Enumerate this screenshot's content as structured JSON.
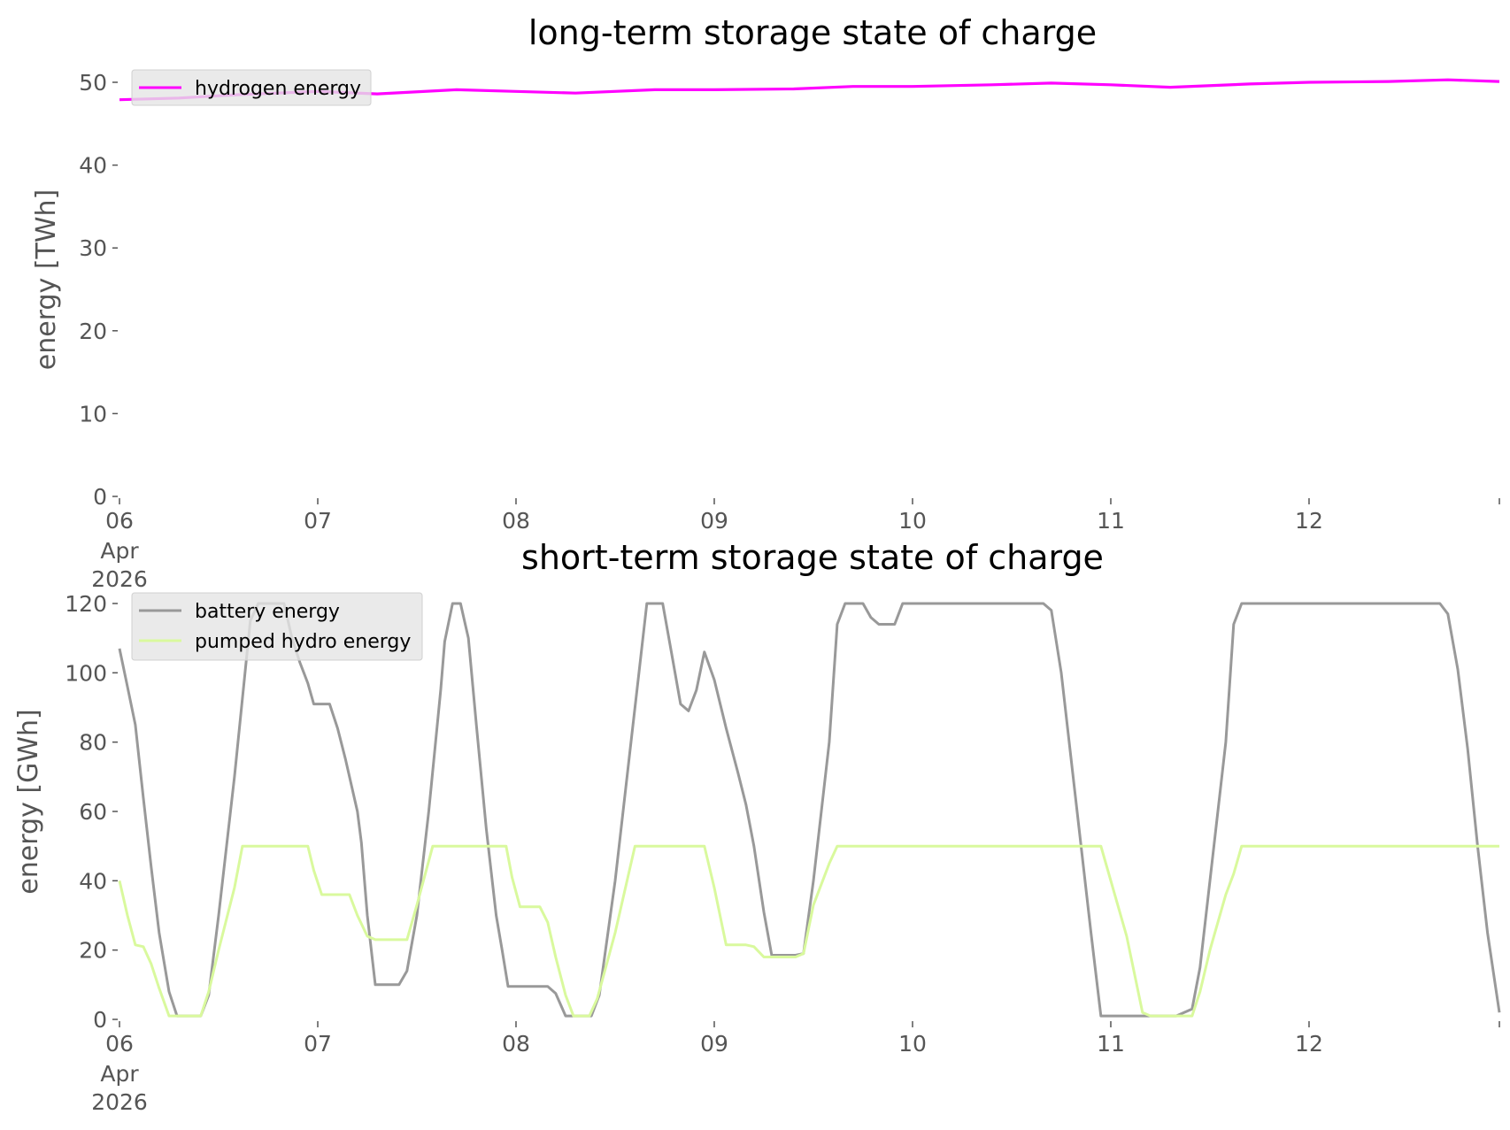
{
  "chart_data": [
    {
      "type": "line",
      "title": "long-term storage state of charge",
      "xlabel": "",
      "ylabel": "energy [TWh]",
      "x_ticks": [
        "06",
        "07",
        "08",
        "09",
        "10",
        "11",
        "12"
      ],
      "x_tick_sub": [
        "Apr",
        "2026"
      ],
      "x_range_days": [
        6,
        12.96
      ],
      "ylim": [
        0,
        50
      ],
      "y_ticks": [
        0,
        10,
        20,
        30,
        40,
        50
      ],
      "legend_placement": "upper-left",
      "grid": false,
      "series": [
        {
          "name": "hydrogen energy",
          "color": "#ff00ff",
          "points": [
            [
              6.0,
              47.9
            ],
            [
              6.3,
              48.1
            ],
            [
              6.6,
              48.5
            ],
            [
              7.0,
              48.9
            ],
            [
              7.3,
              48.6
            ],
            [
              7.7,
              49.1
            ],
            [
              8.0,
              48.9
            ],
            [
              8.3,
              48.7
            ],
            [
              8.7,
              49.1
            ],
            [
              9.0,
              49.1
            ],
            [
              9.4,
              49.2
            ],
            [
              9.7,
              49.5
            ],
            [
              10.0,
              49.5
            ],
            [
              10.4,
              49.7
            ],
            [
              10.7,
              49.9
            ],
            [
              11.0,
              49.7
            ],
            [
              11.3,
              49.4
            ],
            [
              11.7,
              49.8
            ],
            [
              12.0,
              50.0
            ],
            [
              12.4,
              50.1
            ],
            [
              12.7,
              50.3
            ],
            [
              12.96,
              50.1
            ]
          ]
        }
      ]
    },
    {
      "type": "line",
      "title": "short-term storage state of charge",
      "xlabel": "",
      "ylabel": "energy [GWh]",
      "x_ticks": [
        "06",
        "07",
        "08",
        "09",
        "10",
        "11",
        "12"
      ],
      "x_tick_sub": [
        "Apr",
        "2026"
      ],
      "x_range_days": [
        6,
        12.96
      ],
      "ylim": [
        0,
        120
      ],
      "y_ticks": [
        0,
        20,
        40,
        60,
        80,
        100,
        120
      ],
      "legend_placement": "upper-left",
      "grid": false,
      "series": [
        {
          "name": "battery energy",
          "color": "#999999",
          "points": [
            [
              6.0,
              107
            ],
            [
              6.04,
              96
            ],
            [
              6.08,
              85
            ],
            [
              6.12,
              64
            ],
            [
              6.16,
              44
            ],
            [
              6.2,
              25
            ],
            [
              6.25,
              8
            ],
            [
              6.29,
              1
            ],
            [
              6.33,
              1
            ],
            [
              6.37,
              1
            ],
            [
              6.41,
              1
            ],
            [
              6.45,
              7
            ],
            [
              6.5,
              30
            ],
            [
              6.58,
              70
            ],
            [
              6.66,
              115
            ],
            [
              6.7,
              120
            ],
            [
              6.75,
              120
            ],
            [
              6.79,
              120
            ],
            [
              6.83,
              120
            ],
            [
              6.87,
              110
            ],
            [
              6.91,
              103
            ],
            [
              6.95,
              97
            ],
            [
              6.98,
              91
            ],
            [
              7.02,
              91
            ],
            [
              7.06,
              91
            ],
            [
              7.1,
              84
            ],
            [
              7.14,
              75
            ],
            [
              7.2,
              60
            ],
            [
              7.22,
              51
            ],
            [
              7.25,
              30
            ],
            [
              7.29,
              10
            ],
            [
              7.33,
              10
            ],
            [
              7.37,
              10
            ],
            [
              7.41,
              10
            ],
            [
              7.45,
              14
            ],
            [
              7.5,
              30
            ],
            [
              7.56,
              60
            ],
            [
              7.62,
              95
            ],
            [
              7.64,
              109
            ],
            [
              7.68,
              120
            ],
            [
              7.72,
              120
            ],
            [
              7.76,
              110
            ],
            [
              7.8,
              85
            ],
            [
              7.85,
              55
            ],
            [
              7.9,
              30
            ],
            [
              7.93,
              20
            ],
            [
              7.96,
              9.5
            ],
            [
              8.0,
              9.5
            ],
            [
              8.06,
              9.5
            ],
            [
              8.12,
              9.5
            ],
            [
              8.16,
              9.5
            ],
            [
              8.2,
              7.5
            ],
            [
              8.25,
              1
            ],
            [
              8.3,
              1
            ],
            [
              8.34,
              1
            ],
            [
              8.38,
              1
            ],
            [
              8.42,
              7
            ],
            [
              8.5,
              40
            ],
            [
              8.58,
              80
            ],
            [
              8.62,
              100
            ],
            [
              8.66,
              120
            ],
            [
              8.7,
              120
            ],
            [
              8.74,
              120
            ],
            [
              8.79,
              104
            ],
            [
              8.83,
              91
            ],
            [
              8.87,
              89
            ],
            [
              8.91,
              95
            ],
            [
              8.95,
              106
            ],
            [
              9.0,
              98
            ],
            [
              9.06,
              84
            ],
            [
              9.12,
              71
            ],
            [
              9.16,
              62
            ],
            [
              9.2,
              50
            ],
            [
              9.25,
              31
            ],
            [
              9.29,
              18.5
            ],
            [
              9.33,
              18.5
            ],
            [
              9.37,
              18.5
            ],
            [
              9.41,
              18.5
            ],
            [
              9.45,
              19
            ],
            [
              9.5,
              40
            ],
            [
              9.58,
              80
            ],
            [
              9.62,
              114
            ],
            [
              9.66,
              120
            ],
            [
              9.7,
              120
            ],
            [
              9.75,
              120
            ],
            [
              9.79,
              116
            ],
            [
              9.83,
              114
            ],
            [
              9.87,
              114
            ],
            [
              9.91,
              114
            ],
            [
              9.95,
              120
            ],
            [
              10.0,
              120
            ],
            [
              10.2,
              120
            ],
            [
              10.4,
              120
            ],
            [
              10.6,
              120
            ],
            [
              10.66,
              120
            ],
            [
              10.7,
              118
            ],
            [
              10.75,
              100
            ],
            [
              10.8,
              75
            ],
            [
              10.85,
              50
            ],
            [
              10.9,
              25
            ],
            [
              10.95,
              1
            ],
            [
              11.0,
              1
            ],
            [
              11.2,
              1
            ],
            [
              11.33,
              1
            ],
            [
              11.41,
              3
            ],
            [
              11.45,
              15
            ],
            [
              11.5,
              40
            ],
            [
              11.58,
              80
            ],
            [
              11.62,
              114
            ],
            [
              11.66,
              120
            ],
            [
              11.7,
              120
            ],
            [
              12.0,
              120
            ],
            [
              12.3,
              120
            ],
            [
              12.66,
              120
            ],
            [
              12.7,
              117
            ],
            [
              12.75,
              101
            ],
            [
              12.8,
              78
            ],
            [
              12.85,
              50
            ],
            [
              12.9,
              25
            ],
            [
              12.96,
              2
            ]
          ]
        },
        {
          "name": "pumped hydro energy",
          "color": "#d9f99d",
          "points": [
            [
              6.0,
              40
            ],
            [
              6.04,
              30
            ],
            [
              6.08,
              21.5
            ],
            [
              6.12,
              21
            ],
            [
              6.16,
              16
            ],
            [
              6.2,
              9
            ],
            [
              6.25,
              1
            ],
            [
              6.29,
              1
            ],
            [
              6.33,
              1
            ],
            [
              6.37,
              1
            ],
            [
              6.41,
              1
            ],
            [
              6.45,
              8
            ],
            [
              6.5,
              20
            ],
            [
              6.58,
              38
            ],
            [
              6.62,
              50
            ],
            [
              6.75,
              50
            ],
            [
              6.87,
              50
            ],
            [
              6.95,
              50
            ],
            [
              6.98,
              43
            ],
            [
              7.02,
              36
            ],
            [
              7.06,
              36
            ],
            [
              7.1,
              36
            ],
            [
              7.16,
              36
            ],
            [
              7.2,
              30
            ],
            [
              7.25,
              24
            ],
            [
              7.29,
              23
            ],
            [
              7.33,
              23
            ],
            [
              7.41,
              23
            ],
            [
              7.45,
              23
            ],
            [
              7.5,
              33
            ],
            [
              7.58,
              50
            ],
            [
              7.7,
              50
            ],
            [
              7.83,
              50
            ],
            [
              7.95,
              50
            ],
            [
              7.98,
              41
            ],
            [
              8.02,
              32.5
            ],
            [
              8.06,
              32.5
            ],
            [
              8.12,
              32.5
            ],
            [
              8.16,
              28
            ],
            [
              8.2,
              18
            ],
            [
              8.25,
              7
            ],
            [
              8.29,
              1
            ],
            [
              8.33,
              1
            ],
            [
              8.37,
              1
            ],
            [
              8.41,
              6
            ],
            [
              8.5,
              25
            ],
            [
              8.58,
              45
            ],
            [
              8.6,
              50
            ],
            [
              8.7,
              50
            ],
            [
              8.83,
              50
            ],
            [
              8.95,
              50
            ],
            [
              9.0,
              38
            ],
            [
              9.06,
              21.5
            ],
            [
              9.1,
              21.5
            ],
            [
              9.16,
              21.5
            ],
            [
              9.2,
              21
            ],
            [
              9.25,
              18
            ],
            [
              9.33,
              18
            ],
            [
              9.41,
              18
            ],
            [
              9.45,
              19
            ],
            [
              9.5,
              33
            ],
            [
              9.58,
              45
            ],
            [
              9.62,
              50
            ],
            [
              9.75,
              50
            ],
            [
              10.0,
              50
            ],
            [
              10.5,
              50
            ],
            [
              10.9,
              50
            ],
            [
              10.95,
              50
            ],
            [
              11.0,
              40
            ],
            [
              11.08,
              24
            ],
            [
              11.16,
              2
            ],
            [
              11.2,
              1
            ],
            [
              11.3,
              1
            ],
            [
              11.37,
              1
            ],
            [
              11.41,
              1
            ],
            [
              11.45,
              8
            ],
            [
              11.5,
              20
            ],
            [
              11.58,
              36
            ],
            [
              11.62,
              42
            ],
            [
              11.66,
              50
            ],
            [
              11.75,
              50
            ],
            [
              12.0,
              50
            ],
            [
              12.5,
              50
            ],
            [
              12.96,
              50
            ]
          ]
        }
      ]
    }
  ]
}
